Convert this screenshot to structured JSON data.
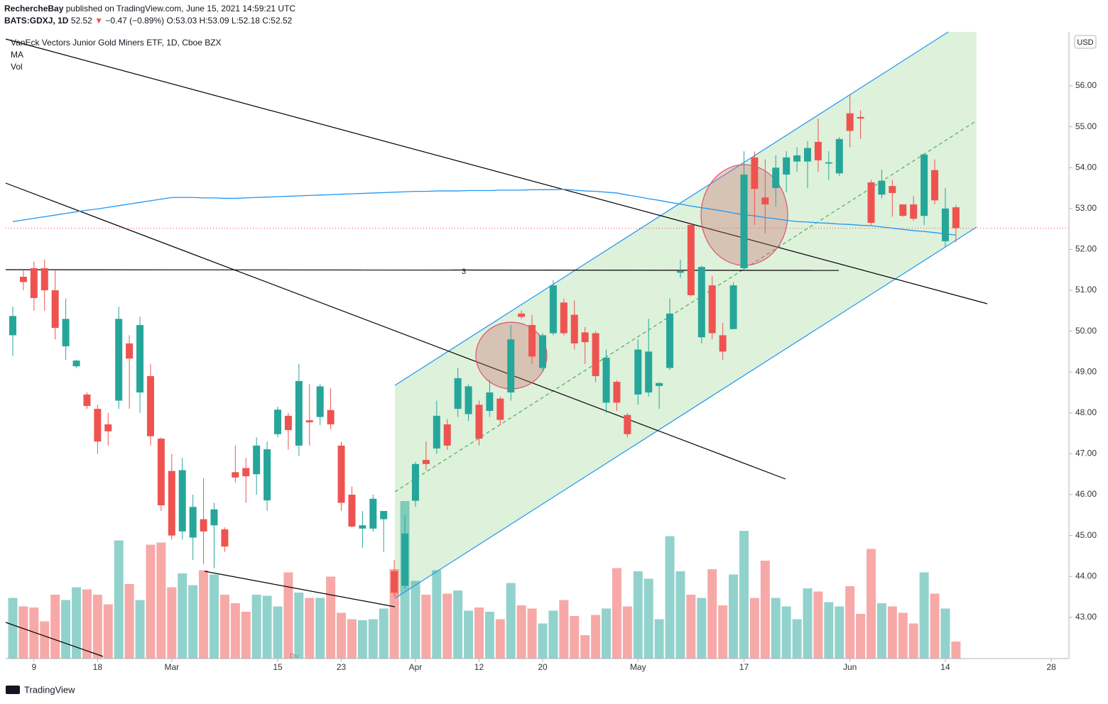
{
  "chart_data": {
    "type": "candlestick",
    "header": {
      "author": "RechercheBay",
      "published": "published on TradingView.com, June 15, 2021 14:59:21 UTC",
      "symbol": "BATS:GDXJ, 1D",
      "price": "52.52",
      "arrow": "▼",
      "change": "−0.47 (−0.89%)",
      "ohlc": "O:53.03 H:53.09 L:52.18 C:52.52"
    },
    "title": "VanEck Vectors Junior Gold Miners ETF, 1D, Cboe BZX",
    "legend": [
      "MA",
      "Vol"
    ],
    "currency": "USD",
    "level_label": "3",
    "div_label": "Div",
    "brand": "TradingView",
    "colors": {
      "up": "#26a69a",
      "down": "#ef5350",
      "ma": "#2196f3",
      "last": "#ef5350"
    },
    "x": [
      "2021-02-05",
      "2021-02-08",
      "2021-02-09",
      "2021-02-10",
      "2021-02-11",
      "2021-02-12",
      "2021-02-16",
      "2021-02-17",
      "2021-02-18",
      "2021-02-19",
      "2021-02-22",
      "2021-02-23",
      "2021-02-24",
      "2021-02-25",
      "2021-02-26",
      "2021-03-01",
      "2021-03-02",
      "2021-03-03",
      "2021-03-04",
      "2021-03-05",
      "2021-03-08",
      "2021-03-09",
      "2021-03-10",
      "2021-03-11",
      "2021-03-12",
      "2021-03-15",
      "2021-03-16",
      "2021-03-17",
      "2021-03-18",
      "2021-03-19",
      "2021-03-22",
      "2021-03-23",
      "2021-03-24",
      "2021-03-25",
      "2021-03-26",
      "2021-03-29",
      "2021-03-30",
      "2021-03-31",
      "2021-04-01",
      "2021-04-05",
      "2021-04-06",
      "2021-04-07",
      "2021-04-08",
      "2021-04-09",
      "2021-04-12",
      "2021-04-13",
      "2021-04-14",
      "2021-04-15",
      "2021-04-16",
      "2021-04-19",
      "2021-04-20",
      "2021-04-21",
      "2021-04-22",
      "2021-04-23",
      "2021-04-26",
      "2021-04-27",
      "2021-04-28",
      "2021-04-29",
      "2021-04-30",
      "2021-05-03",
      "2021-05-04",
      "2021-05-05",
      "2021-05-06",
      "2021-05-07",
      "2021-05-10",
      "2021-05-11",
      "2021-05-12",
      "2021-05-13",
      "2021-05-14",
      "2021-05-17",
      "2021-05-18",
      "2021-05-19",
      "2021-05-20",
      "2021-05-21",
      "2021-05-24",
      "2021-05-25",
      "2021-05-26",
      "2021-05-27",
      "2021-05-28",
      "2021-06-01",
      "2021-06-02",
      "2021-06-03",
      "2021-06-04",
      "2021-06-07",
      "2021-06-08",
      "2021-06-09",
      "2021-06-10",
      "2021-06-11",
      "2021-06-14",
      "2021-06-15"
    ],
    "open": [
      49.9,
      51.33,
      51.54,
      51.54,
      51.0,
      49.63,
      49.14,
      48.45,
      48.1,
      47.72,
      48.3,
      49.7,
      48.5,
      48.9,
      47.37,
      46.58,
      45.1,
      44.95,
      45.4,
      45.25,
      45.15,
      46.55,
      46.65,
      46.5,
      45.86,
      47.48,
      47.93,
      47.2,
      47.82,
      47.9,
      48.07,
      47.2,
      46.0,
      45.17,
      45.17,
      45.4,
      44.13,
      43.77,
      45.85,
      46.85,
      47.13,
      47.72,
      48.1,
      47.97,
      48.2,
      48.05,
      48.35,
      48.5,
      50.43,
      50.15,
      49.1,
      49.95,
      50.7,
      50.4,
      49.97,
      49.95,
      48.25,
      48.76,
      47.95,
      48.45,
      48.5,
      48.66,
      49.1,
      51.43,
      52.6,
      49.85,
      51.12,
      49.9,
      50.05,
      51.54,
      54.25,
      53.27,
      53.5,
      53.83,
      54.15,
      54.15,
      54.63,
      54.1,
      53.86,
      55.33,
      55.24,
      53.64,
      53.34,
      53.55,
      53.1,
      53.1,
      52.82,
      53.94,
      52.2,
      53.03
    ],
    "high": [
      50.6,
      51.5,
      51.7,
      51.75,
      51.5,
      50.8,
      49.3,
      48.5,
      48.2,
      48.0,
      50.6,
      49.9,
      50.35,
      49.2,
      47.4,
      47.0,
      46.9,
      46.0,
      46.4,
      45.8,
      45.2,
      47.2,
      46.9,
      47.4,
      47.3,
      48.15,
      48.0,
      49.2,
      48.7,
      48.7,
      48.6,
      47.3,
      46.2,
      45.6,
      46.0,
      45.6,
      44.4,
      45.5,
      46.8,
      47.3,
      48.3,
      47.85,
      49.1,
      48.7,
      48.3,
      48.8,
      48.4,
      50.15,
      50.5,
      50.4,
      49.95,
      51.25,
      50.8,
      50.75,
      50.1,
      50.0,
      49.55,
      48.8,
      48.0,
      49.8,
      50.3,
      48.75,
      50.8,
      51.75,
      52.65,
      51.6,
      51.35,
      50.2,
      51.2,
      54.4,
      54.4,
      54.2,
      54.3,
      54.4,
      54.5,
      54.65,
      55.2,
      54.4,
      54.75,
      55.8,
      55.4,
      53.7,
      53.95,
      53.7,
      53.1,
      53.3,
      54.35,
      54.2,
      53.5,
      53.09
    ],
    "low": [
      49.4,
      51.0,
      50.5,
      50.5,
      49.8,
      49.3,
      49.1,
      48.1,
      47.0,
      47.2,
      48.1,
      48.1,
      48.0,
      47.2,
      45.6,
      44.9,
      44.9,
      44.4,
      44.3,
      44.2,
      44.6,
      46.3,
      45.8,
      46.0,
      45.6,
      47.4,
      47.1,
      46.95,
      47.2,
      47.7,
      47.6,
      45.6,
      45.2,
      44.7,
      45.1,
      44.6,
      43.5,
      43.7,
      45.7,
      46.6,
      47.0,
      47.1,
      47.9,
      47.8,
      47.2,
      47.9,
      47.7,
      48.3,
      50.3,
      49.2,
      49.0,
      49.9,
      49.9,
      49.55,
      49.2,
      48.75,
      48.0,
      48.05,
      47.4,
      48.2,
      48.4,
      48.1,
      49.05,
      51.3,
      50.85,
      49.7,
      49.8,
      49.3,
      50.05,
      51.5,
      52.6,
      52.4,
      53.05,
      53.4,
      53.9,
      53.5,
      53.9,
      53.7,
      53.8,
      54.5,
      54.7,
      52.6,
      53.25,
      52.8,
      52.8,
      52.7,
      52.6,
      53.1,
      52.05,
      52.18
    ],
    "close": [
      50.37,
      51.2,
      50.81,
      51.0,
      50.08,
      50.3,
      49.28,
      48.17,
      47.3,
      47.55,
      50.3,
      49.33,
      50.15,
      47.43,
      45.74,
      45.0,
      46.6,
      45.7,
      45.1,
      45.64,
      44.73,
      46.42,
      46.45,
      47.2,
      47.11,
      48.08,
      47.58,
      48.78,
      47.77,
      48.65,
      47.72,
      45.8,
      45.22,
      45.25,
      45.9,
      45.6,
      43.6,
      45.05,
      46.75,
      46.75,
      47.93,
      47.2,
      48.85,
      48.65,
      47.37,
      48.5,
      47.83,
      49.8,
      50.35,
      49.38,
      49.9,
      51.12,
      49.95,
      49.7,
      49.73,
      48.9,
      49.35,
      48.25,
      47.48,
      49.55,
      49.5,
      48.73,
      50.43,
      51.47,
      50.88,
      51.57,
      49.95,
      49.5,
      51.12,
      53.83,
      53.48,
      53.1,
      54.0,
      54.25,
      54.3,
      54.48,
      54.18,
      54.13,
      54.7,
      54.9,
      55.2,
      52.65,
      53.68,
      53.38,
      52.82,
      52.75,
      54.32,
      53.2,
      53.0,
      52.52
    ],
    "volume": [
      5.7,
      4.9,
      4.8,
      3.5,
      6.0,
      5.5,
      6.7,
      6.5,
      6.0,
      5.1,
      11.1,
      7.0,
      5.5,
      10.7,
      10.9,
      6.7,
      8.0,
      6.9,
      8.3,
      7.9,
      6.0,
      5.2,
      4.4,
      6.0,
      5.9,
      4.9,
      8.1,
      6.2,
      5.7,
      5.7,
      7.7,
      4.3,
      3.7,
      3.6,
      3.7,
      4.7,
      8.4,
      14.8,
      7.3,
      6.0,
      8.3,
      6.1,
      6.4,
      4.5,
      4.8,
      4.4,
      3.7,
      7.1,
      5.0,
      4.7,
      3.3,
      4.5,
      5.5,
      4.0,
      2.2,
      4.1,
      4.7,
      8.5,
      4.9,
      8.2,
      7.5,
      3.7,
      11.5,
      8.2,
      6.0,
      5.7,
      8.4,
      5.0,
      7.9,
      12.0,
      5.7,
      9.2,
      5.7,
      4.9,
      3.7,
      6.6,
      6.3,
      5.3,
      4.9,
      6.8,
      4.2,
      10.3,
      5.2,
      4.9,
      4.3,
      3.3,
      8.1,
      6.1,
      4.7,
      1.6
    ],
    "ma": [
      52.68,
      52.72,
      52.76,
      52.8,
      52.84,
      52.88,
      52.92,
      52.96,
      52.99,
      53.03,
      53.07,
      53.11,
      53.15,
      53.19,
      53.23,
      53.27,
      53.27,
      53.27,
      53.26,
      53.26,
      53.25,
      53.25,
      53.26,
      53.27,
      53.28,
      53.29,
      53.3,
      53.31,
      53.32,
      53.33,
      53.34,
      53.35,
      53.36,
      53.37,
      53.38,
      53.39,
      53.4,
      53.41,
      53.42,
      53.42,
      53.43,
      53.43,
      53.43,
      53.44,
      53.44,
      53.44,
      53.45,
      53.45,
      53.45,
      53.46,
      53.46,
      53.46,
      53.47,
      53.45,
      53.43,
      53.42,
      53.4,
      53.38,
      53.33,
      53.29,
      53.24,
      53.2,
      53.15,
      53.11,
      53.06,
      53.02,
      52.98,
      52.94,
      52.89,
      52.85,
      52.82,
      52.78,
      52.75,
      52.71,
      52.68,
      52.67,
      52.65,
      52.64,
      52.62,
      52.61,
      52.59,
      52.58,
      52.55,
      52.52,
      52.49,
      52.46,
      52.44,
      52.41,
      52.38,
      52.35
    ],
    "last_price": 52.52,
    "ylim": [
      41.99,
      57.32
    ],
    "yticks": [
      {
        "value": 43,
        "label": "43.00"
      },
      {
        "value": 44,
        "label": "44.00"
      },
      {
        "value": 45,
        "label": "45.00"
      },
      {
        "value": 46,
        "label": "46.00"
      },
      {
        "value": 47,
        "label": "47.00"
      },
      {
        "value": 48,
        "label": "48.00"
      },
      {
        "value": 49,
        "label": "49.00"
      },
      {
        "value": 50,
        "label": "50.00"
      },
      {
        "value": 51,
        "label": "51.00"
      },
      {
        "value": 52,
        "label": "52.00"
      },
      {
        "value": 53,
        "label": "53.00"
      },
      {
        "value": 54,
        "label": "54.00"
      },
      {
        "value": 55,
        "label": "55.00"
      },
      {
        "value": 56,
        "label": "56.00"
      }
    ],
    "xticks": [
      {
        "value": "2021-02-09",
        "label": "9"
      },
      {
        "value": "2021-02-18",
        "label": "18"
      },
      {
        "value": "2021-03-01",
        "label": "Mar"
      },
      {
        "value": "2021-03-15",
        "label": "15"
      },
      {
        "value": "2021-03-23",
        "label": "23"
      },
      {
        "value": "2021-04-01",
        "label": "Apr"
      },
      {
        "value": "2021-04-12",
        "label": "12"
      },
      {
        "value": "2021-04-20",
        "label": "20"
      },
      {
        "value": "2021-05-03",
        "label": "May"
      },
      {
        "value": "2021-05-17",
        "label": "17"
      },
      {
        "value": "2021-06-01",
        "label": "Jun"
      },
      {
        "value": "2021-06-14",
        "label": "14"
      },
      {
        "value": "2021-06-28",
        "label": "28"
      }
    ]
  }
}
